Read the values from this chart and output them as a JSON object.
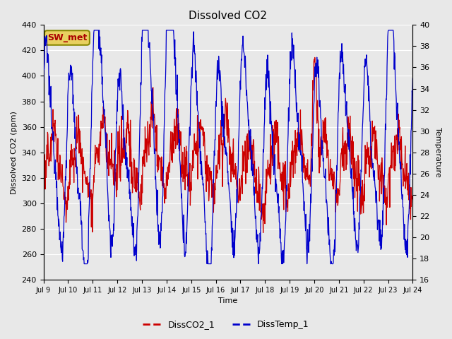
{
  "title": "Dissolved CO2",
  "xlabel": "Time",
  "ylabel_left": "Dissolved CO2 (ppm)",
  "ylabel_right": "Temperature",
  "ylim_left": [
    240,
    440
  ],
  "ylim_right": [
    16,
    40
  ],
  "fig_bg_color": "#e8e8e8",
  "plot_bg_color": "#e8e8e8",
  "grid_color": "#ffffff",
  "co2_color": "#cc0000",
  "temp_color": "#0000cc",
  "xtick_labels": [
    "Jul 9",
    "Jul 10",
    "Jul 11",
    "Jul 12",
    "Jul 13",
    "Jul 14",
    "Jul 15",
    "Jul 16",
    "Jul 17",
    "Jul 18",
    "Jul 19",
    "Jul 20",
    "Jul 21",
    "Jul 22",
    "Jul 23",
    "Jul 24"
  ],
  "annotation_text": "SW_met",
  "annotation_bg": "#e8d060",
  "annotation_fg": "#aa0000",
  "annotation_edge": "#888800",
  "legend_co2": "DissCO2_1",
  "legend_temp": "DissTemp_1"
}
